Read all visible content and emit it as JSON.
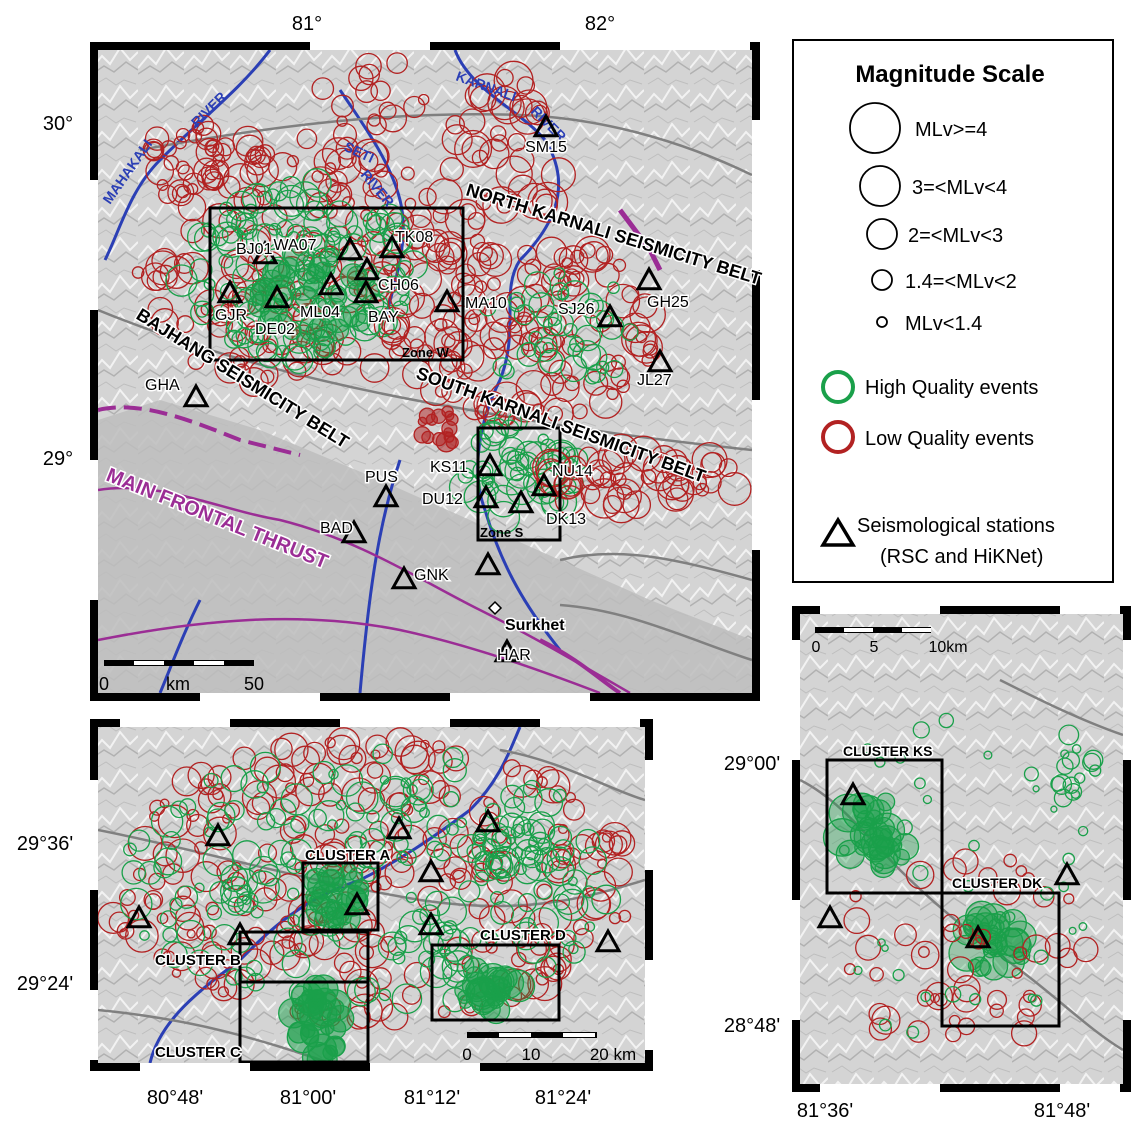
{
  "main_map": {
    "lon_ticks": [
      "81°",
      "82°"
    ],
    "lat_ticks": [
      "30°",
      "29°"
    ],
    "rivers": [
      "KARNALI",
      "RIVER",
      "MAHAKALI",
      "RIVER",
      "SETI",
      "RIVER"
    ],
    "belts": [
      "NORTH KARNALI SEISMICITY BELT",
      "BAJHANG SEISMICITY BELT",
      "SOUTH KARNALI SEISMICITY BELT",
      "MAIN FRONTAL THRUST"
    ],
    "zones": [
      "Zone W",
      "Zone S"
    ],
    "town": "Surkhet",
    "scale": {
      "start": "0",
      "unit": "km",
      "end": "50"
    },
    "stations": [
      "SM15",
      "BJ01",
      "WA07",
      "TK08",
      "CH06",
      "GJR",
      "ML04",
      "BAY",
      "DE02",
      "MA10",
      "SJ26",
      "GH25",
      "JL27",
      "GHA",
      "KS11",
      "NU14",
      "DU12",
      "DK13",
      "PUS",
      "BAD",
      "GNK",
      "HAR"
    ]
  },
  "legend": {
    "title": "Magnitude Scale",
    "magnitudes": [
      "MLv>=4",
      "3=<MLv<4",
      "2=<MLv<3",
      "1.4=<MLv<2",
      "MLv<1.4"
    ],
    "quality": [
      "High Quality events",
      "Low Quality events"
    ],
    "stations_line1": "Seismological stations",
    "stations_line2": "(RSC and HiKNet)",
    "colors": {
      "high": "#1aa04a",
      "low": "#b22222"
    }
  },
  "zone_w_map": {
    "lon_ticks": [
      "80°48'",
      "81°00'",
      "81°12'",
      "81°24'"
    ],
    "lat_ticks": [
      "29°36'",
      "29°24'"
    ],
    "clusters": [
      "CLUSTER A",
      "CLUSTER B",
      "CLUSTER C",
      "CLUSTER D"
    ],
    "scale": {
      "a": "0",
      "b": "10",
      "c": "20 km"
    }
  },
  "zone_s_map": {
    "lon_ticks": [
      "81°36'",
      "81°48'"
    ],
    "lat_ticks": [
      "29°00'",
      "28°48'"
    ],
    "clusters": [
      "CLUSTER KS",
      "CLUSTER DK"
    ],
    "scale": {
      "a": "0",
      "b": "5",
      "c": "10km"
    }
  }
}
